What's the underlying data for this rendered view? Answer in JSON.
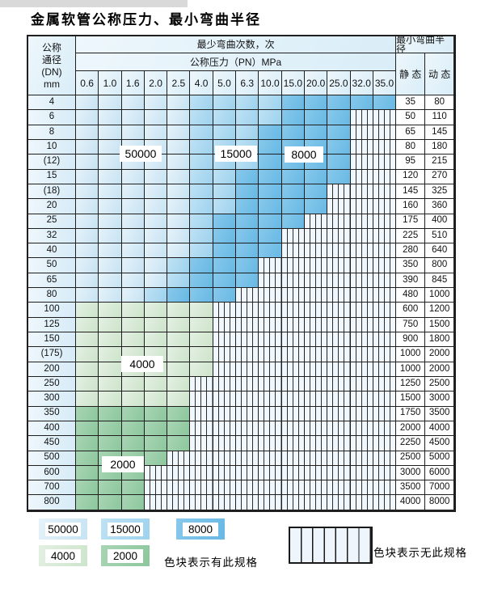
{
  "title": "金属软管公称压力、最小弯曲半径",
  "header": {
    "dn_lines": [
      "公称",
      "通径",
      "(DN)",
      "mm"
    ],
    "min_bend_cycles": "最少弯曲次数，次",
    "nominal_pressure": "公称压力（PN）MPa",
    "min_bend_radius": "最小弯曲半径",
    "static_label": "静 态",
    "dynamic_label": "动 态",
    "pressures": [
      "0.6",
      "1.0",
      "1.6",
      "2.0",
      "2.5",
      "4.0",
      "5.0",
      "6.3",
      "10.0",
      "15.0",
      "20.0",
      "25.0",
      "32.0",
      "35.0"
    ]
  },
  "cell_codes": {
    "a": "50000 cycles",
    "b": "15000 cycles",
    "c": "8000 cycles",
    "g": "4000 cycles",
    "h": "2000 cycles",
    "x": "no specification (striped)"
  },
  "rows": [
    {
      "dn": "4",
      "cells": "aaaaabbbbccccc",
      "static": "35",
      "dynamic": "80"
    },
    {
      "dn": "6",
      "cells": "aaaaabbbbcccxx",
      "static": "50",
      "dynamic": "110"
    },
    {
      "dn": "8",
      "cells": "aaaaabbbccccxx",
      "static": "65",
      "dynamic": "145"
    },
    {
      "dn": "10",
      "cells": "aaaaabbbccccxx",
      "static": "80",
      "dynamic": "180"
    },
    {
      "dn": "(12)",
      "cells": "aaaaabbbccccxx",
      "static": "95",
      "dynamic": "215"
    },
    {
      "dn": "15",
      "cells": "aaaaabbcccccxx",
      "static": "120",
      "dynamic": "270"
    },
    {
      "dn": "(18)",
      "cells": "aaaaabbccccxxx",
      "static": "145",
      "dynamic": "325"
    },
    {
      "dn": "20",
      "cells": "aaaaabbccccxxx",
      "static": "160",
      "dynamic": "360"
    },
    {
      "dn": "25",
      "cells": "aaaaabccccxxxx",
      "static": "175",
      "dynamic": "400"
    },
    {
      "dn": "32",
      "cells": "aaaaabcccxxxxx",
      "static": "225",
      "dynamic": "510"
    },
    {
      "dn": "40",
      "cells": "aaaaabcccxxxxx",
      "static": "280",
      "dynamic": "640"
    },
    {
      "dn": "50",
      "cells": "aaaabcccxxxxxx",
      "static": "350",
      "dynamic": "800"
    },
    {
      "dn": "65",
      "cells": "aaaabcccxxxxxx",
      "static": "390",
      "dynamic": "845"
    },
    {
      "dn": "80",
      "cells": "aaabcccxxxxxxx",
      "static": "480",
      "dynamic": "1000"
    },
    {
      "dn": "100",
      "cells": "ggggggxxxxxxxx",
      "static": "600",
      "dynamic": "1200"
    },
    {
      "dn": "125",
      "cells": "ggggggxxxxxxxx",
      "static": "750",
      "dynamic": "1500"
    },
    {
      "dn": "150",
      "cells": "ggggggxxxxxxxx",
      "static": "900",
      "dynamic": "1800"
    },
    {
      "dn": "(175)",
      "cells": "ggggggxxxxxxxx",
      "static": "1000",
      "dynamic": "2000"
    },
    {
      "dn": "200",
      "cells": "ggggggxxxxxxxx",
      "static": "1000",
      "dynamic": "2000"
    },
    {
      "dn": "250",
      "cells": "gggggxxxxxxxxx",
      "static": "1250",
      "dynamic": "2500"
    },
    {
      "dn": "300",
      "cells": "gggggxxxxxxxxx",
      "static": "1500",
      "dynamic": "3000"
    },
    {
      "dn": "350",
      "cells": "hhhhhxxxxxxxxx",
      "static": "1750",
      "dynamic": "3500"
    },
    {
      "dn": "400",
      "cells": "hhhhhxxxxxxxxx",
      "static": "2000",
      "dynamic": "4000"
    },
    {
      "dn": "450",
      "cells": "hhhhhxxxxxxxxx",
      "static": "2250",
      "dynamic": "4500"
    },
    {
      "dn": "500",
      "cells": "hhhhxxxxxxxxxx",
      "static": "2500",
      "dynamic": "5000"
    },
    {
      "dn": "600",
      "cells": "hhhxxxxxxxxxxx",
      "static": "3000",
      "dynamic": "6000"
    },
    {
      "dn": "700",
      "cells": "hhhxxxxxxxxxxx",
      "static": "3500",
      "dynamic": "7000"
    },
    {
      "dn": "800",
      "cells": "hhhxxxxxxxxxxx",
      "static": "4000",
      "dynamic": "8000"
    }
  ],
  "overlays": [
    {
      "id": "lbl-50000",
      "label": "50000"
    },
    {
      "id": "lbl-15000",
      "label": "15000"
    },
    {
      "id": "lbl-8000",
      "label": "8000"
    },
    {
      "id": "lbl-4000",
      "label": "4000"
    },
    {
      "id": "lbl-2000",
      "label": "2000"
    }
  ],
  "legend": {
    "swatches": [
      {
        "code": "a",
        "label": "50000"
      },
      {
        "code": "b",
        "label": "15000"
      },
      {
        "code": "c",
        "label": "8000"
      },
      {
        "code": "g",
        "label": "4000"
      },
      {
        "code": "h",
        "label": "2000"
      }
    ],
    "has_spec_text": "色块表示有此规格",
    "no_spec_text": "色块表示无此规格"
  },
  "colors": {
    "blue_50000": "#c7e3f3",
    "blue_15000": "#9dd2ee",
    "blue_8000": "#67b9e5",
    "green_4000": "#cde4cb",
    "green_2000": "#8cc79c",
    "stripe_bg": "#f0f7fd",
    "border": "#1f1f1f"
  }
}
